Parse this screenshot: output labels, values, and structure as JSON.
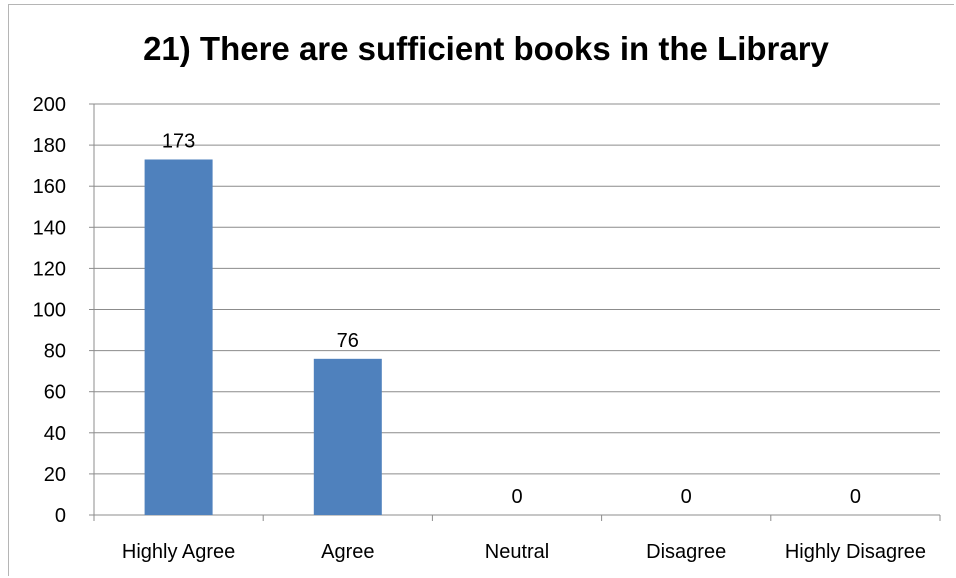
{
  "chart_data": {
    "type": "bar",
    "title": "21) There are sufficient books in the Library",
    "categories": [
      "Highly Agree",
      "Agree",
      "Neutral",
      "Disagree",
      "Highly Disagree"
    ],
    "values": [
      173,
      76,
      0,
      0,
      0
    ],
    "data_labels": [
      "173",
      "76",
      "0",
      "0",
      "0"
    ],
    "ylim": [
      0,
      200
    ],
    "yticks": [
      0,
      20,
      40,
      60,
      80,
      100,
      120,
      140,
      160,
      180,
      200
    ],
    "xlabel": "",
    "ylabel": "",
    "grid": true,
    "legend": "none",
    "bar_color": "#4f81bd",
    "grid_color": "#8c8c8c"
  }
}
